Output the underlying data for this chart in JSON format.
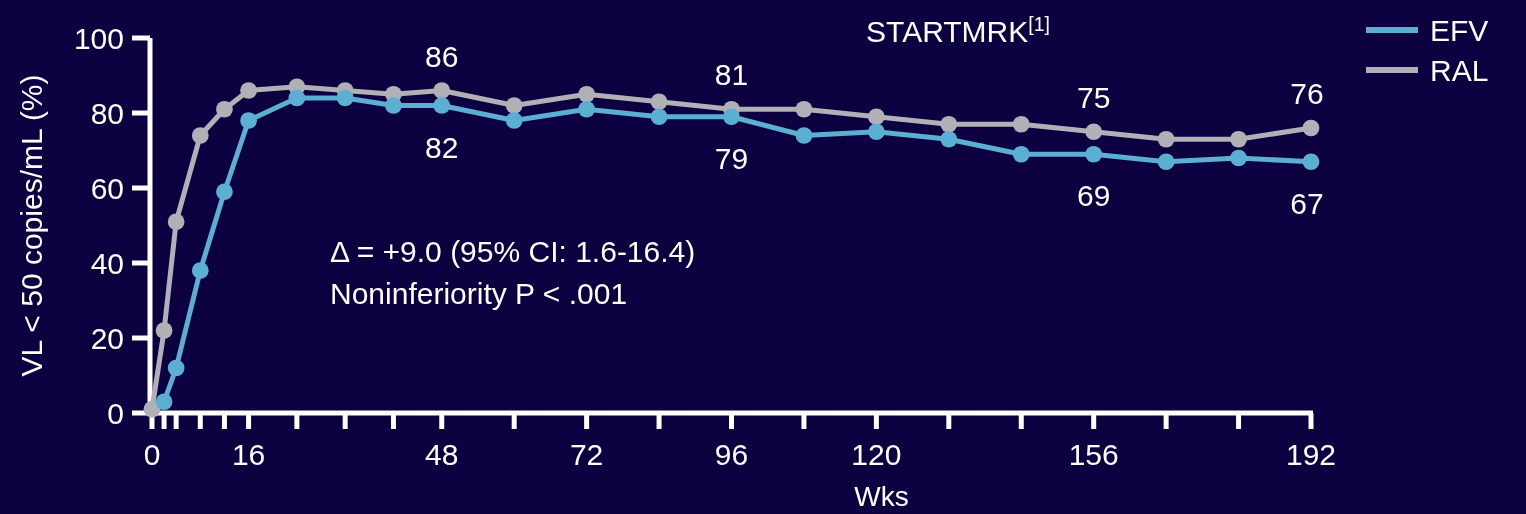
{
  "chart_data": {
    "type": "line",
    "title": "STARTMRK$^{[1]}$",
    "xlabel": "Wks",
    "ylabel": "VL < 50 copies/mL (%)",
    "x": [
      0,
      2,
      4,
      8,
      12,
      16,
      24,
      32,
      40,
      48,
      60,
      72,
      84,
      96,
      108,
      120,
      132,
      144,
      156,
      168,
      180,
      192
    ],
    "series": [
      {
        "name": "EFV",
        "color": "#5aafd3",
        "values": [
          null,
          3,
          12,
          38,
          59,
          78,
          84,
          84,
          82,
          82,
          78,
          81,
          79,
          79,
          74,
          75,
          73,
          69,
          69,
          67,
          68,
          67
        ]
      },
      {
        "name": "RAL",
        "color": "#b0b0b6",
        "values": [
          1,
          22,
          51,
          74,
          81,
          86,
          87,
          86,
          85,
          86,
          82,
          85,
          83,
          81,
          81,
          79,
          77,
          77,
          75,
          73,
          73,
          76
        ]
      }
    ],
    "xlim": [
      0,
      192
    ],
    "ylim": [
      0,
      100
    ],
    "xticks": [
      0,
      {
        "value": 2,
        "label": null
      },
      {
        "value": 4,
        "label": null
      },
      {
        "value": 8,
        "label": null
      },
      {
        "value": 12,
        "label": null
      },
      16,
      {
        "value": 24,
        "label": null
      },
      {
        "value": 32,
        "label": null
      },
      {
        "value": 40,
        "label": null
      },
      48,
      {
        "value": 60,
        "label": null
      },
      72,
      {
        "value": 84,
        "label": null
      },
      96,
      {
        "value": 108,
        "label": null
      },
      120,
      {
        "value": 132,
        "label": null
      },
      {
        "value": 144,
        "label": null
      },
      156,
      {
        "value": 168,
        "label": null
      },
      {
        "value": 180,
        "label": null
      },
      192
    ],
    "yticks": [
      0,
      20,
      40,
      60,
      80,
      100
    ],
    "annotations": [
      {
        "text": "86",
        "x": 48,
        "y": 86
      },
      {
        "text": "82",
        "x": 48,
        "y": 82
      },
      {
        "text": "81",
        "x": 96,
        "y": 81
      },
      {
        "text": "79",
        "x": 96,
        "y": 79
      },
      {
        "text": "75",
        "x": 156,
        "y": 75
      },
      {
        "text": "69",
        "x": 156,
        "y": 69
      },
      {
        "text": "76",
        "x": 192,
        "y": 76
      },
      {
        "text": "67",
        "x": 192,
        "y": 67
      },
      "Δ = +9.0 (95% CI: 1.6-16.4)",
      "Noninferiority P < .001"
    ],
    "legend": "top right",
    "marker": "circle",
    "line_style": "solid",
    "grid": false
  }
}
